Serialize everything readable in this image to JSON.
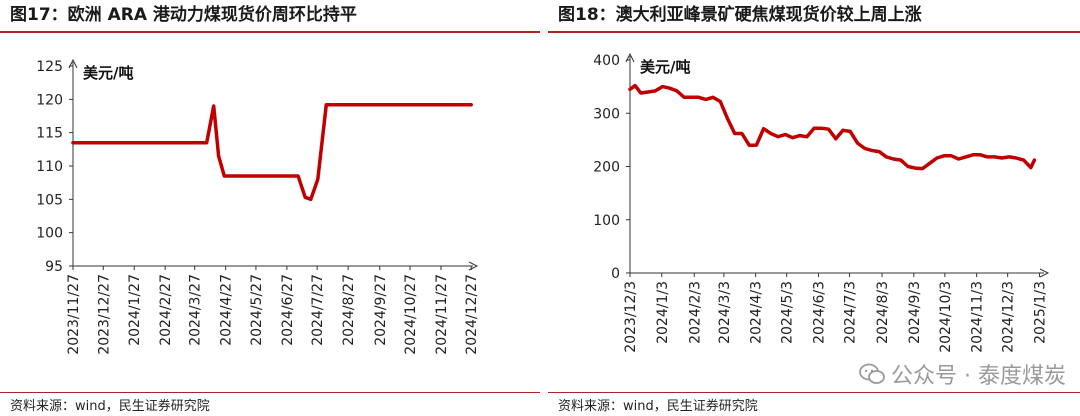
{
  "left": {
    "title": "图17：欧洲 ARA 港动力煤现货价周环比持平",
    "source": "资料来源：wind，民生证券研究院"
  },
  "right": {
    "title": "图18：澳大利亚峰景矿硬焦煤现货价较上周上涨",
    "source": "资料来源：wind，民生证券研究院"
  },
  "watermark": {
    "text": "公众号 · 泰度煤炭",
    "icon": "wechat-icon"
  },
  "chart_data": [
    {
      "type": "line",
      "unit_label": "美元/吨",
      "color": "#c00000",
      "ylim": [
        95,
        125
      ],
      "yticks": [
        95,
        100,
        105,
        110,
        115,
        120,
        125
      ],
      "xlim": [
        0,
        56
      ],
      "xticks": [
        {
          "label": "2023/11/27",
          "x": 0
        },
        {
          "label": "2023/12/27",
          "x": 4.3
        },
        {
          "label": "2024/1/27",
          "x": 8.7
        },
        {
          "label": "2024/2/27",
          "x": 13.1
        },
        {
          "label": "2024/3/27",
          "x": 17.3
        },
        {
          "label": "2024/4/27",
          "x": 21.7
        },
        {
          "label": "2024/5/27",
          "x": 26.0
        },
        {
          "label": "2024/6/27",
          "x": 30.4
        },
        {
          "label": "2024/7/27",
          "x": 34.7
        },
        {
          "label": "2024/8/27",
          "x": 39.1
        },
        {
          "label": "2024/9/27",
          "x": 43.6
        },
        {
          "label": "2024/10/27",
          "x": 47.9
        },
        {
          "label": "2024/11/27",
          "x": 52.3
        },
        {
          "label": "2024/12/27",
          "x": 56.6
        }
      ],
      "series": [
        {
          "name": "欧洲ARA港动力煤现货价",
          "x": [
            0,
            19,
            20,
            20.7,
            21.5,
            32,
            33,
            33.8,
            34.8,
            36,
            56.6
          ],
          "y": [
            113.5,
            113.5,
            119,
            111.5,
            108.5,
            108.5,
            105.3,
            105,
            108,
            119.2,
            119.2
          ]
        }
      ]
    },
    {
      "type": "line",
      "unit_label": "美元/吨",
      "color": "#c00000",
      "ylim": [
        0,
        400
      ],
      "yticks": [
        0,
        100,
        200,
        300,
        400
      ],
      "xlim": [
        0,
        56.5
      ],
      "xticks": [
        {
          "label": "2023/12/3",
          "x": 0
        },
        {
          "label": "2024/1/3",
          "x": 4.4
        },
        {
          "label": "2024/2/3",
          "x": 8.9
        },
        {
          "label": "2024/3/3",
          "x": 13.0
        },
        {
          "label": "2024/4/3",
          "x": 17.4
        },
        {
          "label": "2024/5/3",
          "x": 21.7
        },
        {
          "label": "2024/6/3",
          "x": 26.1
        },
        {
          "label": "2024/7/3",
          "x": 30.4
        },
        {
          "label": "2024/8/3",
          "x": 34.9
        },
        {
          "label": "2024/9/3",
          "x": 39.3
        },
        {
          "label": "2024/10/3",
          "x": 43.6
        },
        {
          "label": "2024/11/3",
          "x": 48.0
        },
        {
          "label": "2024/12/3",
          "x": 52.3
        },
        {
          "label": "2025/1/3",
          "x": 56.7
        }
      ],
      "series": [
        {
          "name": "澳大利亚峰景矿硬焦煤现货价",
          "x": [
            0,
            0.7,
            1.5,
            2.5,
            3.5,
            4.5,
            5.5,
            6.5,
            7.5,
            8.5,
            9.5,
            10.5,
            11.5,
            12.5,
            13.5,
            14.5,
            15.5,
            16.5,
            17.5,
            18.5,
            19.5,
            20.5,
            21.5,
            22.5,
            23.5,
            24.5,
            25.5,
            26.5,
            27.5,
            28.5,
            29.5,
            30.5,
            31.5,
            32.5,
            33.5,
            34.5,
            35.5,
            36.5,
            37.5,
            38.5,
            39.5,
            40.5,
            41.5,
            42.5,
            43.5,
            44.5,
            45.5,
            46.5,
            47.5,
            48.5,
            49.5,
            50.5,
            51.5,
            52.5,
            53.5,
            54.5,
            55.5,
            56
          ],
          "y": [
            345,
            352,
            338,
            340,
            342,
            350,
            347,
            342,
            330,
            330,
            330,
            326,
            330,
            322,
            290,
            262,
            262,
            240,
            240,
            271,
            262,
            256,
            260,
            254,
            258,
            256,
            272,
            272,
            270,
            252,
            268,
            266,
            244,
            234,
            230,
            228,
            218,
            214,
            212,
            200,
            197,
            196,
            206,
            216,
            220,
            220,
            214,
            218,
            222,
            222,
            218,
            218,
            216,
            218,
            216,
            212,
            198,
            212
          ]
        }
      ]
    }
  ]
}
